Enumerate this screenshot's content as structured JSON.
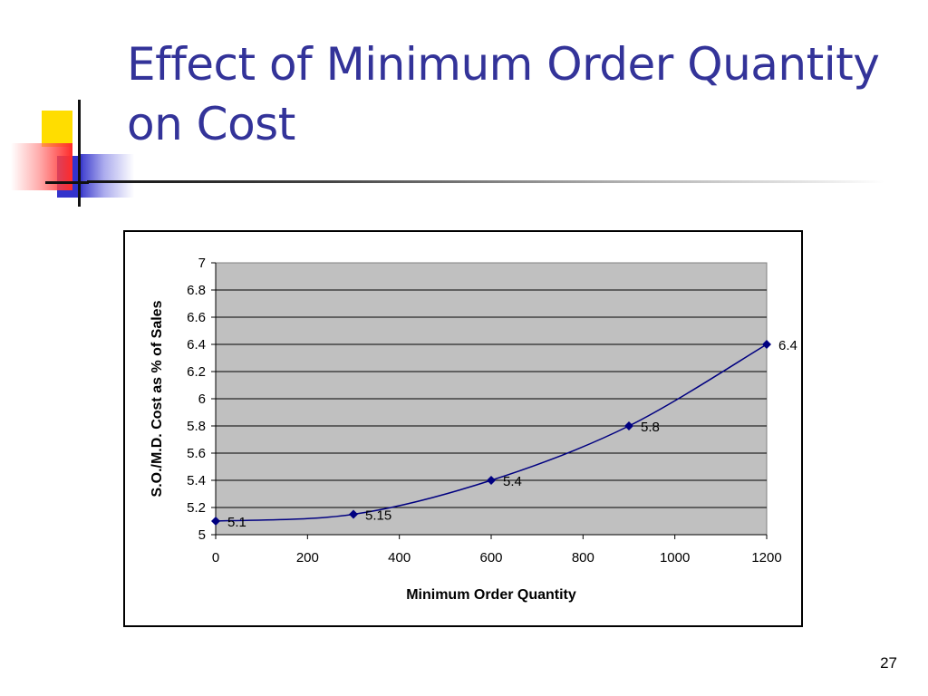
{
  "slide": {
    "title": "Effect of Minimum Order Quantity on Cost",
    "page_number": "27"
  },
  "colors": {
    "title": "#333399",
    "plot_background": "#c0c0c0",
    "series_line": "#000080",
    "gridline": "#000000"
  },
  "chart_data": {
    "type": "line",
    "title": "",
    "xlabel": "Minimum Order Quantity",
    "ylabel": "S.O./M.D. Cost as % of Sales",
    "xlim": [
      0,
      1200
    ],
    "ylim": [
      5,
      7
    ],
    "x_ticks": [
      "0",
      "200",
      "400",
      "600",
      "800",
      "1000",
      "1200"
    ],
    "y_ticks": [
      "7",
      "6.8",
      "6.6",
      "6.4",
      "6.2",
      "6",
      "5.8",
      "5.6",
      "5.4",
      "5.2",
      "5"
    ],
    "grid": true,
    "legend": false,
    "series": [
      {
        "x": [
          0,
          300,
          600,
          900,
          1200
        ],
        "y": [
          5.1,
          5.15,
          5.4,
          5.8,
          6.4
        ],
        "labels": [
          "5.1",
          "5.15",
          "5.4",
          "5.8",
          "6.4"
        ],
        "marker": "diamond"
      }
    ]
  }
}
